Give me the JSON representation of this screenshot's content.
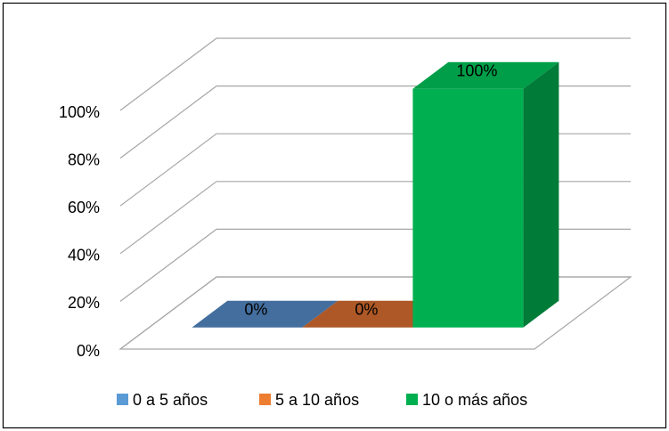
{
  "chart_data": {
    "type": "bar3d",
    "series": [
      {
        "name": "0 a 5 años",
        "color": "#4a7ab0",
        "legend_color": "#5b9bd5",
        "values": [
          0
        ],
        "value_labels": [
          "0%"
        ]
      },
      {
        "name": "5 a 10 años",
        "color": "#c0622a",
        "legend_color": "#ed7d31",
        "values": [
          0
        ],
        "value_labels": [
          "0%"
        ]
      },
      {
        "name": "10 o más años",
        "color": "#00b050",
        "legend_color": "#00b050",
        "values": [
          100
        ],
        "value_labels": [
          "100%"
        ]
      }
    ],
    "ylim": [
      0,
      100
    ],
    "yticks": [
      {
        "value": 0,
        "label": "0%"
      },
      {
        "value": 20,
        "label": "20%"
      },
      {
        "value": 40,
        "label": "40%"
      },
      {
        "value": 60,
        "label": "60%"
      },
      {
        "value": 80,
        "label": "80%"
      },
      {
        "value": 100,
        "label": "100%"
      }
    ],
    "grid": true,
    "legend": "bottom"
  }
}
